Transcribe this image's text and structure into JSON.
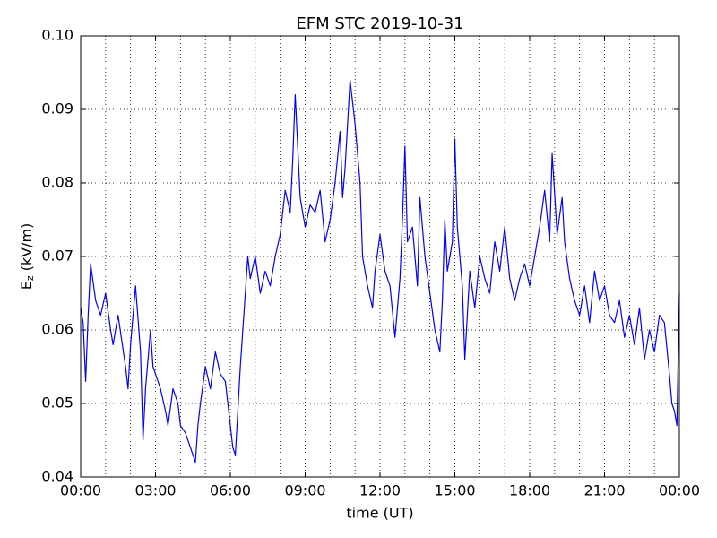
{
  "chart_data": {
    "type": "line",
    "title": "EFM STC    2019-10-31",
    "xlabel": "time (UT)",
    "ylabel": {
      "main": "E",
      "sub": "z",
      "rest": "(kV/m)"
    },
    "xlim": [
      0,
      24
    ],
    "ylim": [
      0.04,
      0.1
    ],
    "xticks": [
      {
        "value": 0,
        "label": "00:00"
      },
      {
        "value": 3,
        "label": "03:00"
      },
      {
        "value": 6,
        "label": "06:00"
      },
      {
        "value": 9,
        "label": "09:00"
      },
      {
        "value": 12,
        "label": "12:00"
      },
      {
        "value": 15,
        "label": "15:00"
      },
      {
        "value": 18,
        "label": "18:00"
      },
      {
        "value": 21,
        "label": "21:00"
      },
      {
        "value": 24,
        "label": "00:00"
      }
    ],
    "xminor": [
      1,
      2,
      4,
      5,
      7,
      8,
      10,
      11,
      13,
      14,
      16,
      17,
      19,
      20,
      22,
      23
    ],
    "yticks": [
      0.04,
      0.05,
      0.06,
      0.07,
      0.08,
      0.09,
      {
        "value": 0.1,
        "label": "0.10"
      }
    ],
    "grid": true,
    "series": [
      {
        "color": "#0000ff",
        "x": [
          0,
          0.1,
          0.2,
          0.3,
          0.4,
          0.6,
          0.8,
          1.0,
          1.2,
          1.3,
          1.5,
          1.8,
          1.9,
          2.0,
          2.2,
          2.4,
          2.5,
          2.6,
          2.8,
          2.9,
          3.0,
          3.2,
          3.4,
          3.5,
          3.7,
          3.9,
          4.0,
          4.2,
          4.4,
          4.5,
          4.6,
          4.7,
          4.8,
          5.0,
          5.2,
          5.4,
          5.6,
          5.8,
          6.0,
          6.1,
          6.2,
          6.3,
          6.4,
          6.5,
          6.6,
          6.7,
          6.8,
          7.0,
          7.2,
          7.4,
          7.6,
          7.8,
          8.0,
          8.2,
          8.4,
          8.5,
          8.6,
          8.7,
          8.8,
          9.0,
          9.2,
          9.4,
          9.6,
          9.8,
          10.0,
          10.2,
          10.4,
          10.5,
          10.6,
          10.8,
          11.0,
          11.2,
          11.3,
          11.5,
          11.7,
          11.8,
          12.0,
          12.2,
          12.4,
          12.6,
          12.8,
          12.9,
          13.0,
          13.1,
          13.3,
          13.5,
          13.6,
          13.8,
          14.0,
          14.2,
          14.4,
          14.5,
          14.6,
          14.7,
          14.9,
          15.0,
          15.1,
          15.3,
          15.4,
          15.5,
          15.6,
          15.8,
          16.0,
          16.2,
          16.4,
          16.6,
          16.8,
          17.0,
          17.2,
          17.4,
          17.6,
          17.8,
          18.0,
          18.2,
          18.4,
          18.6,
          18.8,
          18.9,
          19.1,
          19.3,
          19.4,
          19.6,
          19.8,
          20.0,
          20.2,
          20.4,
          20.6,
          20.8,
          21.0,
          21.2,
          21.4,
          21.6,
          21.8,
          22.0,
          22.2,
          22.4,
          22.6,
          22.8,
          23.0,
          23.2,
          23.4,
          23.6,
          23.7,
          23.8,
          23.9,
          24.0
        ],
        "values": [
          0.063,
          0.061,
          0.053,
          0.062,
          0.069,
          0.064,
          0.062,
          0.065,
          0.06,
          0.058,
          0.062,
          0.055,
          0.052,
          0.058,
          0.066,
          0.057,
          0.045,
          0.052,
          0.06,
          0.055,
          0.054,
          0.052,
          0.049,
          0.047,
          0.052,
          0.05,
          0.047,
          0.046,
          0.044,
          0.043,
          0.042,
          0.047,
          0.05,
          0.055,
          0.052,
          0.057,
          0.054,
          0.053,
          0.047,
          0.044,
          0.043,
          0.049,
          0.055,
          0.06,
          0.065,
          0.07,
          0.067,
          0.07,
          0.065,
          0.068,
          0.066,
          0.07,
          0.073,
          0.079,
          0.076,
          0.083,
          0.092,
          0.085,
          0.078,
          0.074,
          0.077,
          0.076,
          0.079,
          0.072,
          0.075,
          0.08,
          0.087,
          0.078,
          0.082,
          0.094,
          0.088,
          0.08,
          0.07,
          0.066,
          0.063,
          0.068,
          0.073,
          0.068,
          0.066,
          0.059,
          0.067,
          0.075,
          0.085,
          0.072,
          0.074,
          0.066,
          0.078,
          0.07,
          0.065,
          0.06,
          0.057,
          0.064,
          0.075,
          0.068,
          0.072,
          0.086,
          0.074,
          0.066,
          0.056,
          0.062,
          0.068,
          0.063,
          0.07,
          0.067,
          0.065,
          0.072,
          0.068,
          0.074,
          0.067,
          0.064,
          0.067,
          0.069,
          0.066,
          0.07,
          0.074,
          0.079,
          0.072,
          0.084,
          0.073,
          0.078,
          0.072,
          0.067,
          0.064,
          0.062,
          0.066,
          0.061,
          0.068,
          0.064,
          0.066,
          0.062,
          0.061,
          0.064,
          0.059,
          0.062,
          0.058,
          0.063,
          0.056,
          0.06,
          0.057,
          0.062,
          0.061,
          0.054,
          0.05,
          0.049,
          0.047,
          0.065
        ]
      }
    ]
  }
}
